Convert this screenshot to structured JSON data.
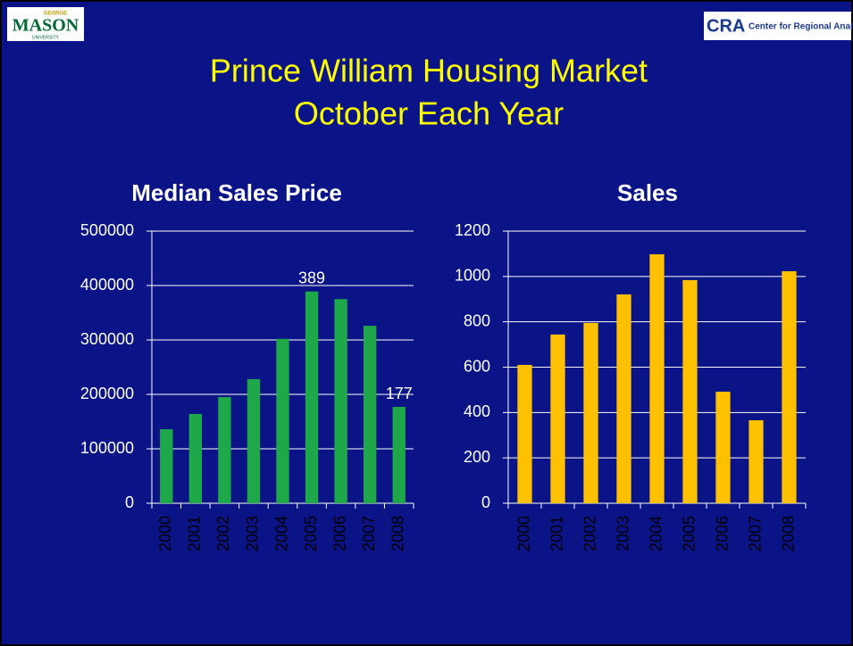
{
  "slide": {
    "title": [
      "Prince William Housing Market",
      "October Each Year"
    ],
    "logo_left": {
      "top": "GEORGE",
      "main": "MASON",
      "bottom": "UNIVERSITY"
    },
    "logo_right": {
      "mark": "CRA",
      "text": "Center for Regional Analy"
    }
  },
  "chart_data": [
    {
      "type": "bar",
      "title": "Median Sales Price",
      "categories": [
        "2000",
        "2001",
        "2002",
        "2003",
        "2004",
        "2005",
        "2006",
        "2007",
        "2008"
      ],
      "values": [
        136000,
        164000,
        195000,
        228000,
        302000,
        389000,
        375000,
        326000,
        177000
      ],
      "value_labels": [
        null,
        null,
        null,
        null,
        null,
        "389",
        null,
        null,
        "177"
      ],
      "color": "#1fa84a",
      "ylim": [
        0,
        500000
      ],
      "yticks": [
        0,
        100000,
        200000,
        300000,
        400000,
        500000
      ],
      "grid": true
    },
    {
      "type": "bar",
      "title": "Sales",
      "categories": [
        "2000",
        "2001",
        "2002",
        "2003",
        "2004",
        "2005",
        "2006",
        "2007",
        "2008"
      ],
      "values": [
        610,
        744,
        795,
        921,
        1098,
        984,
        492,
        366,
        1023
      ],
      "color": "#ffc000",
      "ylim": [
        0,
        1200
      ],
      "yticks": [
        0,
        200,
        400,
        600,
        800,
        1000,
        1200
      ],
      "grid": true
    }
  ]
}
